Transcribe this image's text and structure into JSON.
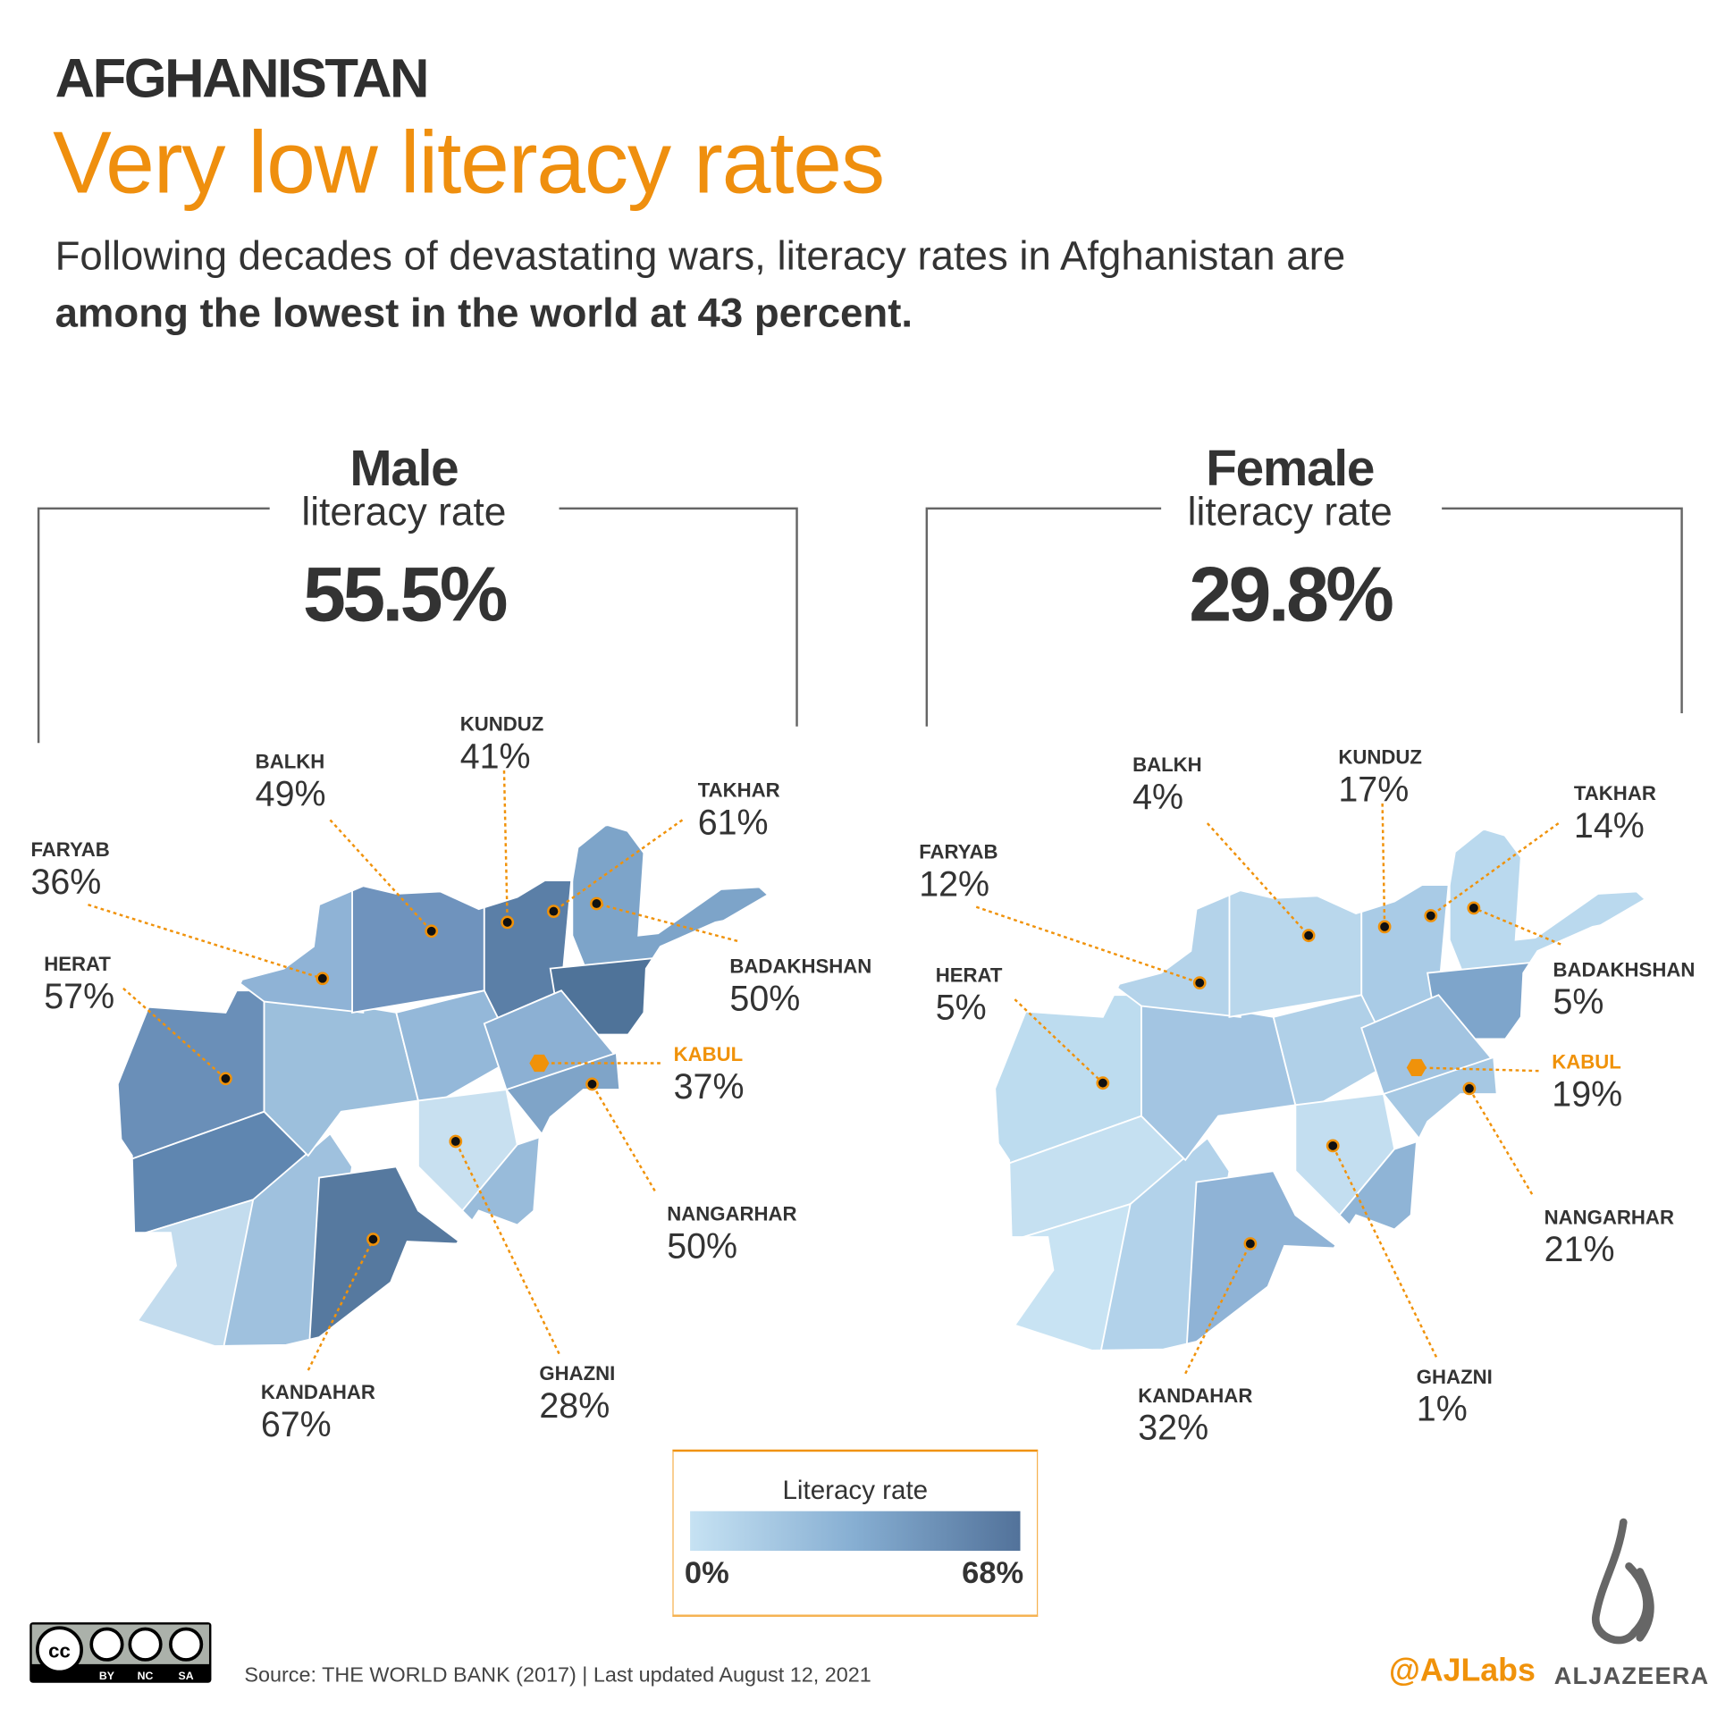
{
  "header": {
    "kicker": "AFGHANISTAN",
    "title": "Very low literacy rates",
    "subtitle": "Following decades of devastating wars, literacy rates in Afghanistan are",
    "subtitle_bold": "among the lowest in the world at 43 percent."
  },
  "chart_data": [
    {
      "type": "choropleth map",
      "title": "Male",
      "subtitle": "literacy rate",
      "national": "55.5%",
      "provinces": [
        {
          "name": "KUNDUZ",
          "value": "41%"
        },
        {
          "name": "BALKH",
          "value": "49%"
        },
        {
          "name": "TAKHAR",
          "value": "61%"
        },
        {
          "name": "FARYAB",
          "value": "36%"
        },
        {
          "name": "BADAKHSHAN",
          "value": "50%"
        },
        {
          "name": "HERAT",
          "value": "57%"
        },
        {
          "name": "KABUL",
          "value": "37%"
        },
        {
          "name": "NANGARHAR",
          "value": "50%"
        },
        {
          "name": "GHAZNI",
          "value": "28%"
        },
        {
          "name": "KANDAHAR",
          "value": "67%"
        }
      ]
    },
    {
      "type": "choropleth map",
      "title": "Female",
      "subtitle": "literacy rate",
      "national": "29.8%",
      "provinces": [
        {
          "name": "KUNDUZ",
          "value": "17%"
        },
        {
          "name": "BALKH",
          "value": "4%"
        },
        {
          "name": "TAKHAR",
          "value": "14%"
        },
        {
          "name": "FARYAB",
          "value": "12%"
        },
        {
          "name": "BADAKHSHAN",
          "value": "5%"
        },
        {
          "name": "HERAT",
          "value": "5%"
        },
        {
          "name": "KABUL",
          "value": "19%"
        },
        {
          "name": "NANGARHAR",
          "value": "21%"
        },
        {
          "name": "GHAZNI",
          "value": "1%"
        },
        {
          "name": "KANDAHAR",
          "value": "32%"
        }
      ]
    }
  ],
  "legend": {
    "title": "Literacy rate",
    "min": "0%",
    "max": "68%",
    "range": [
      0,
      68
    ],
    "color_low": "#c6e2f3",
    "color_high": "#52729a"
  },
  "colors": {
    "accent": "#f0920a",
    "capital": "#f0920a"
  },
  "footer": {
    "source": "Source: THE WORLD BANK (2017) | Last updated August 12, 2021",
    "handle": "@AJLabs",
    "brand": "ALJAZEERA",
    "license": "CC BY NC SA"
  }
}
